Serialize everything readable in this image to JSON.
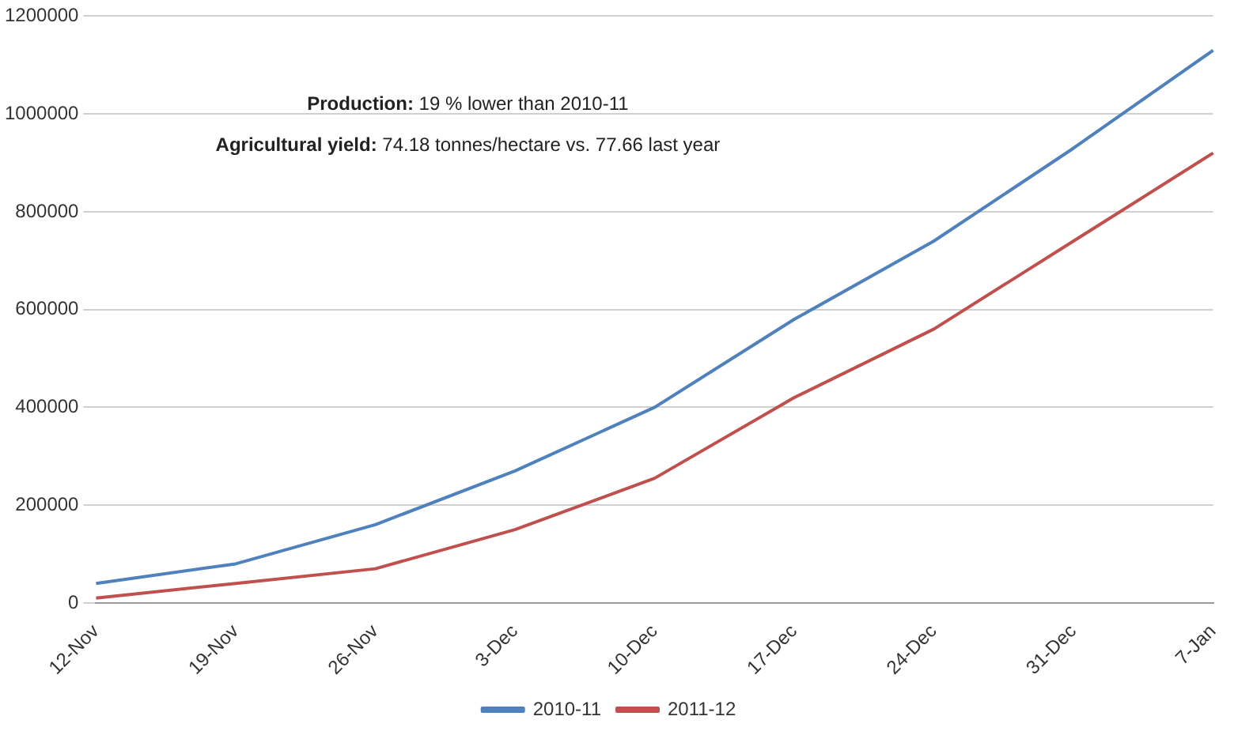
{
  "chart_data": {
    "type": "line",
    "categories": [
      "12-Nov",
      "19-Nov",
      "26-Nov",
      "3-Dec",
      "10-Dec",
      "17-Dec",
      "24-Dec",
      "31-Dec",
      "7-Jan"
    ],
    "series": [
      {
        "name": "2010-11",
        "color": "#4f81bd",
        "values": [
          40000,
          80000,
          160000,
          270000,
          400000,
          580000,
          740000,
          930000,
          1130000
        ]
      },
      {
        "name": "2011-12",
        "color": "#c0504d",
        "values": [
          10000,
          40000,
          70000,
          150000,
          255000,
          420000,
          560000,
          740000,
          920000
        ]
      }
    ],
    "ylim": [
      0,
      1200000
    ],
    "yticks": [
      0,
      200000,
      400000,
      600000,
      800000,
      1000000,
      1200000
    ],
    "grid": "y",
    "legend": "bottom",
    "marker": "none",
    "line_style": "solid",
    "annotations": [
      "Production: 19 % lower than 2010-11",
      "Agricultural yield: 74.18 tonnes/hectare vs. 77.66 last year"
    ]
  }
}
